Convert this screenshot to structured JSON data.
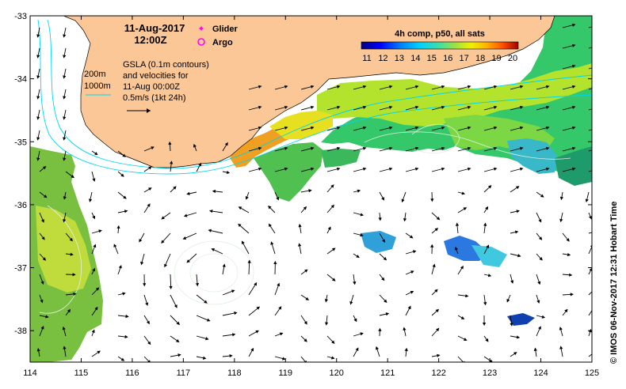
{
  "map": {
    "date_line": "11-Aug-2017",
    "time_line": "12:00Z",
    "legend": {
      "glider_label": "Glider",
      "argo_label": "Argo"
    },
    "gsla": {
      "line1": "GSLA (0.1m contours)",
      "line2": "and velocities for",
      "line3": "11-Aug 00:00Z",
      "line4": "0.5m/s (1kt 24h)"
    },
    "isobaths": {
      "shallow": "200m",
      "deep": "1000m"
    },
    "colorbar": {
      "title": "4h comp, p50, all sats",
      "labels": [
        "11",
        "12",
        "13",
        "14",
        "15",
        "16",
        "17",
        "18",
        "19",
        "20"
      ],
      "min": 11,
      "max": 20
    },
    "axes": {
      "lon_ticks": [
        "114",
        "115",
        "116",
        "117",
        "118",
        "119",
        "120",
        "121",
        "122",
        "123",
        "124",
        "125"
      ],
      "lat_ticks": [
        "-33",
        "-34",
        "-35",
        "-36",
        "-37",
        "-38"
      ],
      "lon_range": [
        114,
        125
      ],
      "lat_range": [
        -38.5,
        -33
      ]
    },
    "credit": "© IMOS 06-Nov-2017 12:31 Hobart Time",
    "colors": {
      "land": "#fbc796",
      "isobath": "#00d6f0",
      "glider": "#ff00ff",
      "argo": "#ff00ff"
    }
  }
}
